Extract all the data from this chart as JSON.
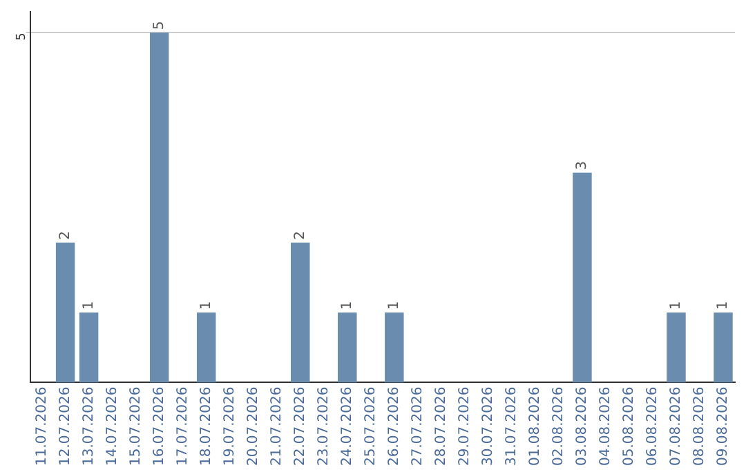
{
  "chart_data": {
    "type": "bar",
    "categories": [
      "11.07.2026",
      "12.07.2026",
      "13.07.2026",
      "14.07.2026",
      "15.07.2026",
      "16.07.2026",
      "17.07.2026",
      "18.07.2026",
      "19.07.2026",
      "20.07.2026",
      "21.07.2026",
      "22.07.2026",
      "23.07.2026",
      "24.07.2026",
      "25.07.2026",
      "26.07.2026",
      "27.07.2026",
      "28.07.2026",
      "29.07.2026",
      "30.07.2026",
      "31.07.2026",
      "01.08.2026",
      "02.08.2026",
      "03.08.2026",
      "04.08.2026",
      "05.08.2026",
      "06.08.2026",
      "07.08.2026",
      "08.08.2026",
      "09.08.2026"
    ],
    "values": [
      0,
      2,
      1,
      0,
      0,
      5,
      0,
      1,
      0,
      0,
      0,
      2,
      0,
      1,
      0,
      1,
      0,
      0,
      0,
      0,
      0,
      0,
      0,
      3,
      0,
      0,
      0,
      1,
      0,
      1
    ],
    "value_labels": [
      null,
      "2",
      "1",
      null,
      null,
      "5",
      null,
      "1",
      null,
      null,
      null,
      "2",
      null,
      "1",
      null,
      "1",
      null,
      null,
      null,
      null,
      null,
      null,
      null,
      "3",
      null,
      null,
      null,
      "1",
      null,
      "1"
    ],
    "color": "#6a8caf",
    "ylim": [
      0,
      5.3
    ],
    "yticks": [
      5
    ],
    "grid": "y",
    "legend": false
  }
}
